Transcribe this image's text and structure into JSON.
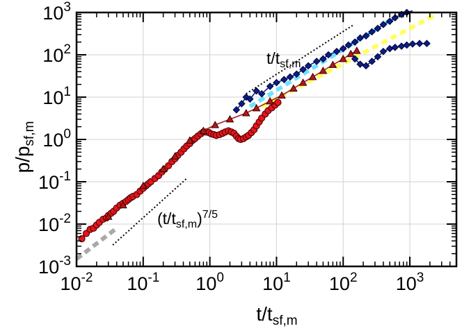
{
  "chart_data": {
    "type": "scatter",
    "xscale": "log",
    "yscale": "log",
    "xlim": [
      0.01,
      5000
    ],
    "ylim": [
      0.001,
      1000
    ],
    "xlabel": {
      "main": "t/t",
      "sub": "sf,m"
    },
    "ylabel": {
      "main": "p/p",
      "sub": "sf,m"
    },
    "grid": true,
    "x_ticks": [
      {
        "value": 0.01,
        "base": "10",
        "exp": "-2"
      },
      {
        "value": 0.1,
        "base": "10",
        "exp": "-1"
      },
      {
        "value": 1,
        "base": "10",
        "exp": "0"
      },
      {
        "value": 10,
        "base": "10",
        "exp": "1"
      },
      {
        "value": 100,
        "base": "10",
        "exp": "2"
      },
      {
        "value": 1000,
        "base": "10",
        "exp": "3"
      }
    ],
    "y_ticks": [
      {
        "value": 0.001,
        "base": "10",
        "exp": "-3"
      },
      {
        "value": 0.01,
        "base": "10",
        "exp": "-2"
      },
      {
        "value": 0.1,
        "base": "10",
        "exp": "-1"
      },
      {
        "value": 1,
        "base": "10",
        "exp": "0"
      },
      {
        "value": 10,
        "base": "10",
        "exp": "1"
      },
      {
        "value": 100,
        "base": "10",
        "exp": "2"
      },
      {
        "value": 1000,
        "base": "10",
        "exp": "3"
      }
    ],
    "annotations": [
      {
        "id": "slope-linear",
        "main": "t/t",
        "sub": "sf,m",
        "sup": "",
        "at": [
          3.2,
          180
        ]
      },
      {
        "id": "slope-7-5",
        "main": "(t/t",
        "sub": "sf,m",
        "close": ")",
        "sup": "7/5",
        "at": [
          0.14,
          0.0125
        ]
      }
    ],
    "reference_lines": [
      {
        "name": "power-law t^(7/5)",
        "style": "dotted",
        "color": "#000000",
        "x": [
          0.035,
          0.45
        ],
        "y": [
          0.0032,
          0.12
        ]
      },
      {
        "name": "power-law t^1",
        "style": "dotted",
        "color": "#000000",
        "x": [
          3.5,
          140
        ],
        "y": [
          12,
          500
        ]
      },
      {
        "name": "yellow reference",
        "style": "dashed",
        "color": "#ffff44",
        "x": [
          6,
          2500
        ],
        "y": [
          6,
          900
        ]
      },
      {
        "name": "cyan reference",
        "style": "dashed",
        "color": "#55ddff",
        "x": [
          4,
          800
        ],
        "y": [
          6,
          1000
        ]
      },
      {
        "name": "grey reference",
        "style": "dashed",
        "color": "#999999",
        "x": [
          0.01,
          0.04
        ],
        "y": [
          0.0015,
          0.008
        ]
      }
    ],
    "series": [
      {
        "name": "red circles",
        "marker": "circle",
        "color": "#e8141c",
        "x": [
          0.012,
          0.014,
          0.016,
          0.018,
          0.02,
          0.022,
          0.025,
          0.028,
          0.03,
          0.033,
          0.036,
          0.04,
          0.045,
          0.05,
          0.055,
          0.06,
          0.065,
          0.07,
          0.08,
          0.09,
          0.1,
          0.11,
          0.12,
          0.13,
          0.15,
          0.17,
          0.19,
          0.21,
          0.24,
          0.27,
          0.3,
          0.33,
          0.37,
          0.41,
          0.45,
          0.5,
          0.55,
          0.6,
          0.66,
          0.73,
          0.8,
          0.88,
          0.97,
          1.05,
          1.15,
          1.25,
          1.4,
          1.55,
          1.7,
          1.9,
          2.1,
          2.3,
          2.5,
          2.7,
          2.9,
          3.2,
          3.5,
          3.8,
          4.2,
          4.6,
          5.0,
          5.5,
          6.0,
          6.8,
          7.5,
          8.5,
          9.5,
          10.5
        ],
        "y": [
          0.0045,
          0.006,
          0.0075,
          0.008,
          0.0095,
          0.011,
          0.013,
          0.014,
          0.016,
          0.018,
          0.02,
          0.024,
          0.028,
          0.031,
          0.034,
          0.038,
          0.042,
          0.045,
          0.05,
          0.06,
          0.07,
          0.08,
          0.09,
          0.1,
          0.12,
          0.14,
          0.17,
          0.2,
          0.24,
          0.3,
          0.35,
          0.42,
          0.5,
          0.6,
          0.7,
          0.8,
          0.95,
          1.05,
          1.2,
          1.35,
          1.5,
          1.5,
          1.45,
          1.35,
          1.3,
          1.25,
          1.3,
          1.4,
          1.5,
          1.6,
          1.5,
          1.4,
          1.2,
          1.05,
          1.0,
          1.05,
          1.15,
          1.25,
          1.45,
          1.7,
          2.1,
          2.6,
          3.2,
          4.0,
          4.8,
          5.6,
          6.5,
          7.5
        ]
      },
      {
        "name": "dark red triangles",
        "marker": "triangle",
        "color": "#b01818",
        "x": [
          0.03,
          0.05,
          0.1,
          0.2,
          0.3,
          0.5,
          0.8,
          1.2,
          2,
          3.5,
          5,
          8,
          12,
          18,
          25,
          35,
          50,
          70,
          100,
          130,
          160
        ],
        "y": [
          0.015,
          0.028,
          0.08,
          0.2,
          0.4,
          0.95,
          1.6,
          2.2,
          3.0,
          4.2,
          5.5,
          8,
          11,
          16,
          22,
          30,
          42,
          58,
          80,
          105,
          125
        ]
      },
      {
        "name": "navy diamonds",
        "marker": "diamond",
        "color": "#0a1d8a",
        "x": [
          2.5,
          3,
          3.5,
          4,
          5,
          6,
          8,
          10,
          13,
          16,
          20,
          25,
          30,
          40,
          50,
          60,
          80,
          100,
          120,
          150,
          180,
          220,
          270,
          330,
          400,
          500,
          600,
          750,
          900,
          1100
        ],
        "y": [
          5,
          7,
          10,
          9,
          14,
          12,
          18,
          22,
          26,
          30,
          35,
          45,
          55,
          70,
          80,
          100,
          120,
          140,
          170,
          200,
          250,
          280,
          350,
          420,
          520,
          620,
          750,
          900,
          1000,
          1100
        ]
      },
      {
        "name": "navy diamonds (branch)",
        "marker": "diamond",
        "color": "#0a1d8a",
        "x": [
          150,
          180,
          220,
          270,
          330,
          400,
          500,
          600,
          750,
          900,
          1100,
          1400,
          1800
        ],
        "y": [
          80,
          60,
          55,
          70,
          90,
          120,
          140,
          150,
          160,
          170,
          180,
          185,
          185
        ]
      }
    ]
  }
}
